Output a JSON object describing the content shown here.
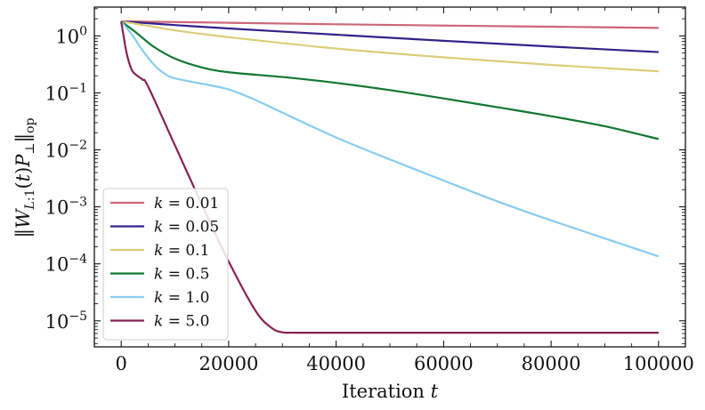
{
  "chart_data": {
    "type": "line",
    "title": "",
    "xlabel": "Iteration t",
    "ylabel": "||W_{L:1}(t) P_⊥||_op",
    "xscale": "linear",
    "yscale": "log",
    "xlim": [
      -5000,
      105000
    ],
    "ylim": [
      3.5e-06,
      3.2
    ],
    "xticks": [
      0,
      20000,
      40000,
      60000,
      80000,
      100000
    ],
    "xtick_labels": [
      "0",
      "20000",
      "40000",
      "60000",
      "80000",
      "100000"
    ],
    "yticks": [
      1e-05,
      0.0001,
      0.001,
      0.01,
      0.1,
      1
    ],
    "ytick_labels": [
      {
        "base": "10",
        "exp": "−5"
      },
      {
        "base": "10",
        "exp": "−4"
      },
      {
        "base": "10",
        "exp": "−3"
      },
      {
        "base": "10",
        "exp": "−2"
      },
      {
        "base": "10",
        "exp": "−1"
      },
      {
        "base": "10",
        "exp": "0"
      }
    ],
    "legend_position": "lower-left",
    "grid": false,
    "series": [
      {
        "name": "k = 0.01",
        "k_value": "0.01",
        "color": "#cc6677",
        "x": [
          0,
          20000,
          40000,
          60000,
          80000,
          100000
        ],
        "y": [
          1.8,
          1.7,
          1.6,
          1.52,
          1.45,
          1.38
        ]
      },
      {
        "name": "k = 0.05",
        "k_value": "0.05",
        "color": "#332288",
        "x": [
          0,
          10000,
          20000,
          40000,
          60000,
          80000,
          100000
        ],
        "y": [
          1.8,
          1.55,
          1.35,
          1.05,
          0.82,
          0.65,
          0.52
        ]
      },
      {
        "name": "k = 0.1",
        "k_value": "0.1",
        "color": "#ddcc77",
        "x": [
          0,
          5000,
          10000,
          20000,
          40000,
          60000,
          80000,
          100000
        ],
        "y": [
          1.8,
          1.5,
          1.25,
          0.95,
          0.6,
          0.42,
          0.31,
          0.24
        ]
      },
      {
        "name": "k = 0.5",
        "k_value": "0.5",
        "color": "#117733",
        "x": [
          0,
          3000,
          6000,
          10000,
          15000,
          20000,
          30000,
          40000,
          50000,
          60000,
          70000,
          80000,
          90000,
          100000
        ],
        "y": [
          1.8,
          1.1,
          0.65,
          0.4,
          0.28,
          0.23,
          0.19,
          0.15,
          0.112,
          0.08,
          0.056,
          0.039,
          0.026,
          0.0155
        ]
      },
      {
        "name": "k = 1.0",
        "k_value": "1.0",
        "color": "#88ccee",
        "x": [
          0,
          2000,
          4000,
          6000,
          8000,
          10000,
          15000,
          20000,
          25000,
          30000,
          40000,
          50000,
          60000,
          70000,
          80000,
          90000,
          100000
        ],
        "y": [
          1.8,
          1.05,
          0.55,
          0.32,
          0.22,
          0.18,
          0.145,
          0.115,
          0.075,
          0.045,
          0.0165,
          0.0068,
          0.0029,
          0.00125,
          0.00058,
          0.00028,
          0.000135
        ]
      },
      {
        "name": "k = 5.0",
        "k_value": "5.0",
        "color": "#882255",
        "x": [
          0,
          1000,
          2000,
          3000,
          4000,
          5000,
          10000,
          15000,
          20000,
          25000,
          28000,
          30000,
          32000,
          35000,
          40000,
          60000,
          80000,
          100000
        ],
        "y": [
          1.8,
          0.5,
          0.25,
          0.2,
          0.17,
          0.13,
          0.012,
          0.0011,
          0.00011,
          1.5e-05,
          7.5e-06,
          6.3e-06,
          6.2e-06,
          6.2e-06,
          6.2e-06,
          6.2e-06,
          6.2e-06,
          6.2e-06
        ]
      }
    ]
  }
}
